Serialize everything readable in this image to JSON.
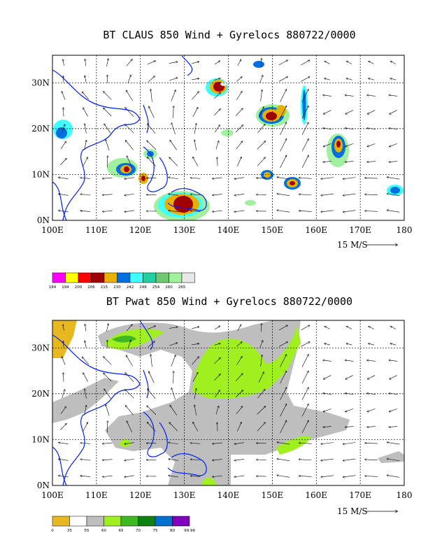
{
  "chart_data": [
    {
      "type": "heatmap",
      "title": "BT CLAUS 850 Wind + Gyrelocs 880722/0000",
      "xticks": [
        "100E",
        "110E",
        "120E",
        "130E",
        "140E",
        "150E",
        "160E",
        "170E",
        "180"
      ],
      "yticks": [
        "0N",
        "10N",
        "20N",
        "30N"
      ],
      "xlim": [
        100,
        180
      ],
      "ylim": [
        0,
        36
      ],
      "grid": true,
      "vector_ref_label": "15 M/S",
      "colorbar": {
        "labels": [
          "184",
          "194",
          "200",
          "206",
          "215",
          "230",
          "242",
          "248",
          "254",
          "260",
          "265"
        ],
        "colors": [
          "#ff00ff",
          "#ffff00",
          "#ff0000",
          "#a00000",
          "#e8b000",
          "#0070e0",
          "#40ffff",
          "#20d0a0",
          "#70c870",
          "#a0f0a0",
          "#e8e8e8"
        ]
      },
      "features": [
        {
          "lon": 137,
          "lat": 29,
          "level": "cold"
        },
        {
          "lon": 152,
          "lat": 22,
          "level": "cold"
        },
        {
          "lon": 131,
          "lat": 3,
          "level": "cold"
        },
        {
          "lon": 116,
          "lat": 11,
          "level": "cold"
        },
        {
          "lon": 165,
          "lat": 17,
          "level": "cold"
        },
        {
          "lon": 155,
          "lat": 8,
          "level": "cold"
        },
        {
          "lon": 150,
          "lat": 10,
          "level": "cold"
        },
        {
          "lon": 177,
          "lat": 6,
          "level": "warm"
        }
      ]
    },
    {
      "type": "heatmap",
      "title": "BT Pwat 850 Wind + Gyrelocs 880722/0000",
      "xticks": [
        "100E",
        "110E",
        "120E",
        "130E",
        "140E",
        "150E",
        "160E",
        "170E",
        "180"
      ],
      "yticks": [
        "0N",
        "10N",
        "20N",
        "30N"
      ],
      "xlim": [
        100,
        180
      ],
      "ylim": [
        0,
        36
      ],
      "grid": true,
      "vector_ref_label": "15 M/S",
      "colorbar": {
        "labels": [
          "0",
          "35",
          "55",
          "60",
          "65",
          "70",
          "75",
          "80",
          "99.99"
        ],
        "colors": [
          "#e8b820",
          "#ffffff",
          "#bebebe",
          "#a0f020",
          "#40b820",
          "#108010",
          "#0070d0",
          "#8000c0"
        ]
      }
    }
  ]
}
